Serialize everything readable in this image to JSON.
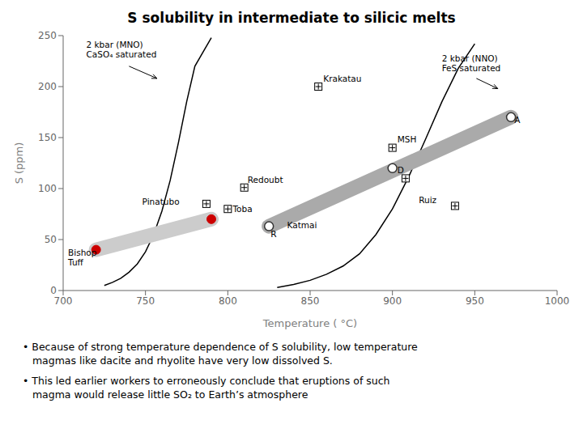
{
  "chart_data": {
    "type": "scatter",
    "title": "S solubility in intermediate to silicic melts",
    "x_label": "Temperature ( °C)",
    "y_label": "S (ppm)",
    "xlim": [
      700,
      1000
    ],
    "ylim": [
      0,
      250
    ],
    "xticks": [
      700,
      750,
      800,
      850,
      900,
      950,
      1000
    ],
    "yticks": [
      0,
      50,
      100,
      150,
      200,
      250
    ],
    "grid": false,
    "series": [
      {
        "type": "line",
        "color": "#000000",
        "line_style": "solid",
        "x": [
          725,
          730,
          735,
          740,
          745,
          750,
          755,
          760,
          765,
          770,
          775,
          780,
          790
        ],
        "values": [
          5,
          8,
          12,
          18,
          26,
          38,
          55,
          78,
          108,
          145,
          185,
          220,
          248
        ]
      },
      {
        "type": "line",
        "color": "#000000",
        "line_style": "solid",
        "x": [
          830,
          840,
          850,
          860,
          870,
          880,
          890,
          900,
          910,
          920,
          930,
          940,
          950
        ],
        "values": [
          3,
          6,
          10,
          16,
          24,
          36,
          55,
          80,
          112,
          148,
          185,
          218,
          242
        ]
      },
      {
        "type": "line",
        "color": "#cccccc",
        "line_style": "band",
        "x": [
          720,
          790
        ],
        "values": [
          40,
          70
        ]
      },
      {
        "type": "line",
        "color": "#aaaaaa",
        "line_style": "band",
        "x": [
          825,
          972
        ],
        "values": [
          63,
          170
        ]
      },
      {
        "type": "scatter",
        "color": "#000000",
        "marker": "square_cross",
        "x": [
          787,
          800,
          810,
          855,
          900,
          908,
          938
        ],
        "values": [
          85,
          80,
          101,
          200,
          140,
          110,
          83
        ]
      },
      {
        "type": "scatter",
        "color": "#333333",
        "marker": "open_circle",
        "x": [
          825,
          972,
          900
        ],
        "values": [
          63,
          170,
          120
        ]
      },
      {
        "type": "scatter",
        "color": "#cc0000",
        "marker": "circle",
        "x": [
          720,
          790
        ],
        "values": [
          40,
          70
        ]
      }
    ],
    "annotations": [
      {
        "text": "2 kbar (MNO)\nCaSO₄ saturated",
        "x": 714,
        "y": 226
      },
      {
        "text": "2 kbar (NNO)\nFeS saturated",
        "x": 930,
        "y": 213
      },
      {
        "text": "Krakatau",
        "x": 858,
        "y": 202
      },
      {
        "text": "Redoubt",
        "x": 812,
        "y": 103
      },
      {
        "text": "Pinatubo",
        "x": 748,
        "y": 82
      },
      {
        "text": "Toba",
        "x": 803,
        "y": 75
      },
      {
        "text": "MSH",
        "x": 903,
        "y": 143
      },
      {
        "text": "D",
        "x": 903,
        "y": 113
      },
      {
        "text": "Ruiz",
        "x": 916,
        "y": 83
      },
      {
        "text": "Katmai",
        "x": 836,
        "y": 59
      },
      {
        "text": "R",
        "x": 826,
        "y": 50
      },
      {
        "text": "A",
        "x": 974,
        "y": 162
      },
      {
        "text": "Bishop\nTuff",
        "x": 703,
        "y": 22
      }
    ],
    "arrows": [
      {
        "x": [
          740,
          757
        ],
        "values": [
          220,
          208
        ]
      },
      {
        "x": [
          951,
          964
        ],
        "values": [
          208,
          198
        ]
      }
    ],
    "caption": [
      "• Because of strong temperature dependence of S solubility, low temperature",
      "   magmas like dacite and rhyolite have very low dissolved S.",
      "• This led earlier workers to erroneously conclude that eruptions of such",
      "   magma would release little SO₂ to Earth’s atmosphere"
    ]
  }
}
